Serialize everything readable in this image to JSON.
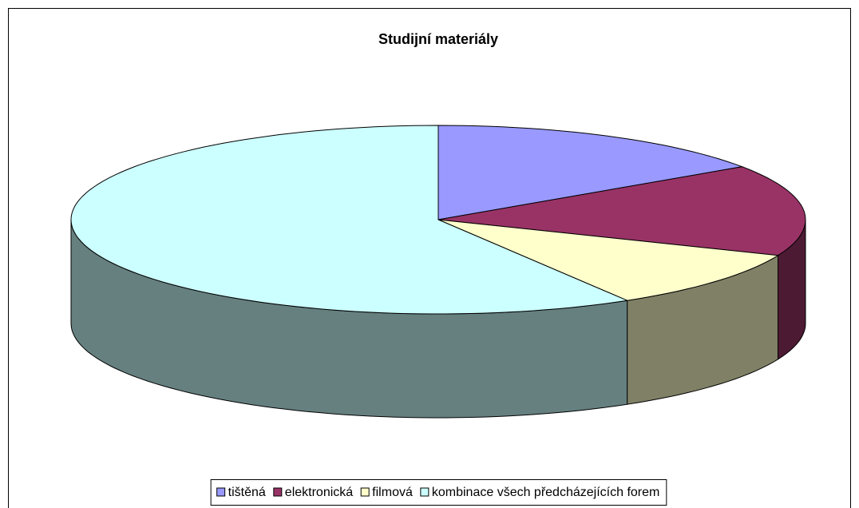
{
  "chart_data": {
    "type": "pie3d",
    "title": "Studijní materiály",
    "categories": [
      "tištěná",
      "elektronická",
      "filmová",
      "kombinace všech předcházejících forem"
    ],
    "values": [
      15.5,
      15.7,
      10.2,
      58.6
    ],
    "colors": [
      "#9999ff",
      "#993366",
      "#ffffcc",
      "#ccffff"
    ],
    "legend": "bottom"
  }
}
